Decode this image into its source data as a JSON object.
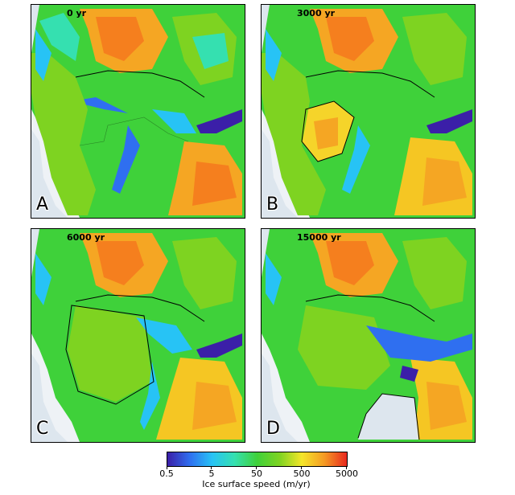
{
  "panels": [
    {
      "time": "0 yr",
      "letter": "A"
    },
    {
      "time": "3000 yr",
      "letter": "B"
    },
    {
      "time": "6000 yr",
      "letter": "C"
    },
    {
      "time": "15000 yr",
      "letter": "D"
    }
  ],
  "colorbar": {
    "title": "Ice surface speed (m/yr)",
    "ticks": [
      "0.5",
      "5",
      "50",
      "500",
      "5000"
    ],
    "log_scale": true,
    "colors": [
      "#3b1fa8",
      "#2f6ff0",
      "#27c3f5",
      "#35e0b0",
      "#3fd13a",
      "#7ed321",
      "#f5e62a",
      "#f59a23",
      "#e8281e"
    ]
  }
}
